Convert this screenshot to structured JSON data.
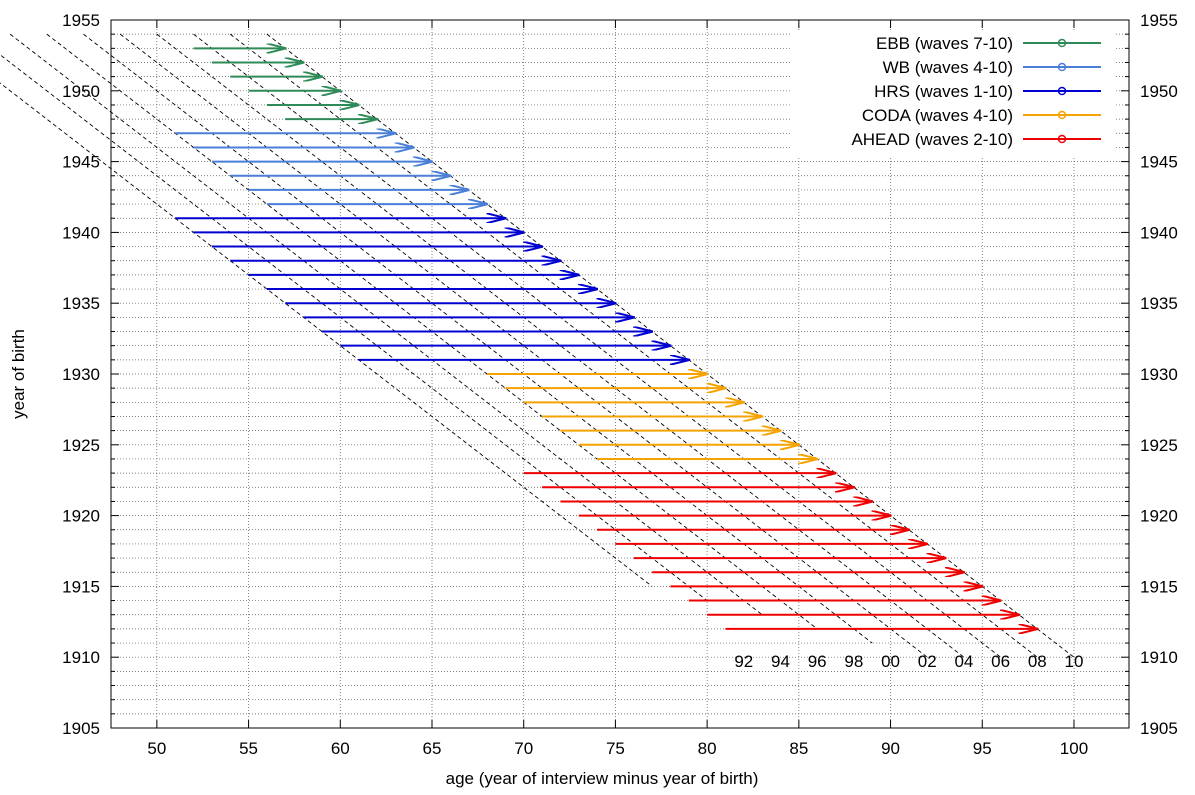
{
  "chart_data": {
    "type": "line",
    "xlabel": "age (year of interview minus year of birth)",
    "ylabel": "year of birth",
    "xlim": [
      47.5,
      103
    ],
    "ylim": [
      1905,
      1955
    ],
    "xticks": [
      50,
      55,
      60,
      65,
      70,
      75,
      80,
      85,
      90,
      95,
      100
    ],
    "yticks": [
      1905,
      1910,
      1915,
      1920,
      1925,
      1930,
      1935,
      1940,
      1945,
      1950,
      1955
    ],
    "grid": "dotted, x every 5, y every 1",
    "legend_position": "top-right",
    "series": [
      {
        "name": "EBB (waves 7-10)",
        "color": "#2e8b57",
        "segments": [
          {
            "birth_year": 1953,
            "age_start": 52,
            "age_end": 57
          },
          {
            "birth_year": 1952,
            "age_start": 53,
            "age_end": 58
          },
          {
            "birth_year": 1951,
            "age_start": 54,
            "age_end": 59
          },
          {
            "birth_year": 1950,
            "age_start": 55,
            "age_end": 60
          },
          {
            "birth_year": 1949,
            "age_start": 56,
            "age_end": 61
          },
          {
            "birth_year": 1948,
            "age_start": 57,
            "age_end": 62
          }
        ]
      },
      {
        "name": "WB (waves 4-10)",
        "color": "#4a7fd8",
        "segments": [
          {
            "birth_year": 1947,
            "age_start": 51,
            "age_end": 63
          },
          {
            "birth_year": 1946,
            "age_start": 52,
            "age_end": 64
          },
          {
            "birth_year": 1945,
            "age_start": 53,
            "age_end": 65
          },
          {
            "birth_year": 1944,
            "age_start": 54,
            "age_end": 66
          },
          {
            "birth_year": 1943,
            "age_start": 55,
            "age_end": 67
          },
          {
            "birth_year": 1942,
            "age_start": 56,
            "age_end": 68
          }
        ]
      },
      {
        "name": "HRS (waves 1-10)",
        "color": "#0000d0",
        "segments": [
          {
            "birth_year": 1941,
            "age_start": 51,
            "age_end": 69
          },
          {
            "birth_year": 1940,
            "age_start": 52,
            "age_end": 70
          },
          {
            "birth_year": 1939,
            "age_start": 53,
            "age_end": 71
          },
          {
            "birth_year": 1938,
            "age_start": 54,
            "age_end": 72
          },
          {
            "birth_year": 1937,
            "age_start": 55,
            "age_end": 73
          },
          {
            "birth_year": 1936,
            "age_start": 56,
            "age_end": 74
          },
          {
            "birth_year": 1935,
            "age_start": 57,
            "age_end": 75
          },
          {
            "birth_year": 1934,
            "age_start": 58,
            "age_end": 76
          },
          {
            "birth_year": 1933,
            "age_start": 59,
            "age_end": 77
          },
          {
            "birth_year": 1932,
            "age_start": 60,
            "age_end": 78
          },
          {
            "birth_year": 1931,
            "age_start": 61,
            "age_end": 79
          }
        ]
      },
      {
        "name": "CODA (waves 4-10)",
        "color": "#f5a300",
        "segments": [
          {
            "birth_year": 1930,
            "age_start": 68,
            "age_end": 80
          },
          {
            "birth_year": 1929,
            "age_start": 69,
            "age_end": 81
          },
          {
            "birth_year": 1928,
            "age_start": 70,
            "age_end": 82
          },
          {
            "birth_year": 1927,
            "age_start": 71,
            "age_end": 83
          },
          {
            "birth_year": 1926,
            "age_start": 72,
            "age_end": 84
          },
          {
            "birth_year": 1925,
            "age_start": 73,
            "age_end": 85
          },
          {
            "birth_year": 1924,
            "age_start": 74,
            "age_end": 86
          }
        ]
      },
      {
        "name": "AHEAD (waves 2-10)",
        "color": "#ee0000",
        "segments": [
          {
            "birth_year": 1923,
            "age_start": 70,
            "age_end": 87
          },
          {
            "birth_year": 1922,
            "age_start": 71,
            "age_end": 88
          },
          {
            "birth_year": 1921,
            "age_start": 72,
            "age_end": 89
          },
          {
            "birth_year": 1920,
            "age_start": 73,
            "age_end": 90
          },
          {
            "birth_year": 1919,
            "age_start": 74,
            "age_end": 91
          },
          {
            "birth_year": 1918,
            "age_start": 75,
            "age_end": 92
          },
          {
            "birth_year": 1917,
            "age_start": 76,
            "age_end": 93
          },
          {
            "birth_year": 1916,
            "age_start": 77,
            "age_end": 94
          },
          {
            "birth_year": 1915,
            "age_start": 78,
            "age_end": 95
          },
          {
            "birth_year": 1914,
            "age_start": 79,
            "age_end": 96
          },
          {
            "birth_year": 1913,
            "age_start": 80,
            "age_end": 97
          },
          {
            "birth_year": 1912,
            "age_start": 81,
            "age_end": 98
          }
        ]
      }
    ],
    "interview_year_lines": [
      {
        "label": "92",
        "year": 1992,
        "birth_year_top": 1954,
        "birth_year_bottom": 1915
      },
      {
        "label": "94",
        "year": 1994,
        "birth_year_top": 1954,
        "birth_year_bottom": 1914
      },
      {
        "label": "96",
        "year": 1996,
        "birth_year_top": 1954,
        "birth_year_bottom": 1913
      },
      {
        "label": "98",
        "year": 1998,
        "birth_year_top": 1954,
        "birth_year_bottom": 1912
      },
      {
        "label": "00",
        "year": 2000,
        "birth_year_top": 1954,
        "birth_year_bottom": 1911
      },
      {
        "label": "02",
        "year": 2002,
        "birth_year_top": 1954,
        "birth_year_bottom": 1910
      },
      {
        "label": "04",
        "year": 2004,
        "birth_year_top": 1954,
        "birth_year_bottom": 1910
      },
      {
        "label": "06",
        "year": 2006,
        "birth_year_top": 1954,
        "birth_year_bottom": 1910
      },
      {
        "label": "08",
        "year": 2008,
        "birth_year_top": 1954,
        "birth_year_bottom": 1910
      },
      {
        "label": "10",
        "year": 2010,
        "birth_year_top": 1954,
        "birth_year_bottom": 1910
      }
    ]
  }
}
